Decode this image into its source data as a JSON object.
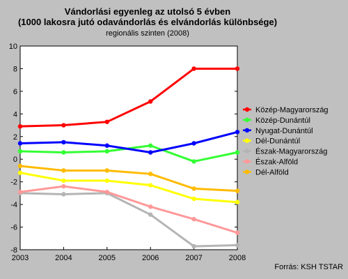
{
  "chart_data": {
    "type": "line",
    "title": "Vándorlási egyenleg az utolsó 5 évben",
    "title_line2": "(1000 lakosra jutó odavándorlás és elvándorlás különbsége)",
    "subtitle": "regionális szinten (2008)",
    "source": "Forrás: KSH TSTAR",
    "xlabel": "",
    "ylabel": "",
    "x": [
      "2003",
      "2004",
      "2005",
      "2006",
      "2007",
      "2008"
    ],
    "ylim": [
      -8,
      10
    ],
    "yticks": [
      -8,
      -6,
      -4,
      -2,
      0,
      2,
      4,
      6,
      8,
      10
    ],
    "grid": false,
    "legend_position": "right",
    "series": [
      {
        "name": "Közép-Magyarország",
        "color": "#ff0000",
        "values": [
          2.9,
          3.0,
          3.3,
          5.1,
          8.0,
          8.0
        ]
      },
      {
        "name": "Közép-Dunántúl",
        "color": "#33ff33",
        "values": [
          0.7,
          0.6,
          0.7,
          1.2,
          -0.2,
          0.6
        ]
      },
      {
        "name": "Nyugat-Dunántúl",
        "color": "#0000ff",
        "values": [
          1.4,
          1.5,
          1.2,
          0.6,
          1.4,
          2.4
        ]
      },
      {
        "name": "Dél-Dunántúl",
        "color": "#ffff00",
        "values": [
          -1.2,
          -1.9,
          -1.9,
          -2.3,
          -3.5,
          -3.8
        ]
      },
      {
        "name": "Észak-Magyarország",
        "color": "#b4b4b4",
        "values": [
          -3.0,
          -3.1,
          -3.0,
          -4.9,
          -7.7,
          -7.6
        ]
      },
      {
        "name": "Észak-Alföld",
        "color": "#ff9999",
        "values": [
          -2.9,
          -2.4,
          -2.9,
          -4.2,
          -5.3,
          -6.5
        ]
      },
      {
        "name": "Dél-Alföld",
        "color": "#ffbb00",
        "values": [
          -0.6,
          -1.0,
          -1.0,
          -1.3,
          -2.6,
          -2.8
        ]
      }
    ]
  }
}
